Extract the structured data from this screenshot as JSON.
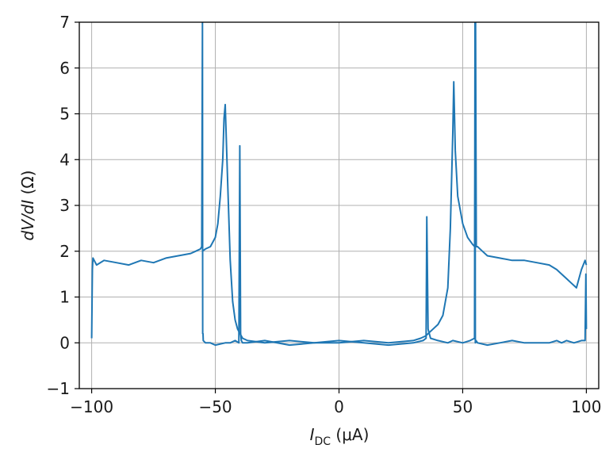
{
  "chart_data": {
    "type": "line",
    "title": "",
    "xlabel": {
      "main": "I",
      "sub": "DC",
      "unit": " (μA)"
    },
    "ylabel": {
      "main": "dV/dI",
      "unit": " (Ω)"
    },
    "xlim": [
      -105,
      105
    ],
    "ylim": [
      -1,
      7
    ],
    "xticks": [
      -100,
      -50,
      0,
      50,
      100
    ],
    "xtick_labels": [
      "−100",
      "−50",
      "0",
      "50",
      "100"
    ],
    "yticks": [
      -1,
      0,
      1,
      2,
      3,
      4,
      5,
      6,
      7
    ],
    "ytick_labels": [
      "−1",
      "0",
      "1",
      "2",
      "3",
      "4",
      "5",
      "6",
      "7"
    ],
    "grid": true,
    "color": "#1f77b4",
    "series": [
      {
        "x": [
          -100,
          -99.7,
          -99.5,
          -98,
          -95,
          -90,
          -85,
          -80,
          -75,
          -70,
          -65,
          -60,
          -58,
          -56,
          -55.5,
          -55.2,
          -55.1,
          -55,
          -54.9,
          -54,
          -52,
          -50,
          -46,
          -44,
          -42,
          -40.5,
          -40.1,
          -39.8,
          -39.5,
          -39,
          -37,
          -30,
          -20,
          -10,
          0,
          10,
          20,
          30,
          34,
          35.2,
          35.5,
          36,
          37,
          40,
          44,
          46,
          50,
          53,
          54.8,
          55,
          55.1,
          55.4,
          56,
          60,
          65,
          70,
          75,
          80,
          85,
          88,
          90,
          92,
          95,
          98,
          99.5,
          99.8,
          100
        ],
        "y": [
          0.1,
          1.6,
          1.85,
          1.7,
          1.8,
          1.75,
          1.7,
          1.8,
          1.75,
          1.85,
          1.9,
          1.95,
          2.0,
          2.05,
          2.1,
          7,
          0.2,
          0.2,
          0.05,
          0.0,
          0.0,
          -0.05,
          0.0,
          0.0,
          0.05,
          0.0,
          4.3,
          0.2,
          0.05,
          0.0,
          0.0,
          0.05,
          -0.05,
          0.0,
          0.05,
          0.0,
          -0.05,
          0.0,
          0.05,
          0.1,
          2.75,
          0.3,
          0.1,
          0.05,
          0.0,
          0.05,
          0.0,
          0.05,
          0.1,
          7,
          0.0,
          0.05,
          0.0,
          -0.05,
          0.0,
          0.05,
          0.0,
          0.0,
          0.0,
          0.05,
          0.0,
          0.05,
          0.0,
          0.05,
          0.05,
          1.5,
          0.3
        ]
      },
      {
        "x": [
          -55.3,
          -54,
          -52,
          -50,
          -49,
          -48,
          -47,
          -46.5,
          -46,
          -45,
          -44,
          -43,
          -42,
          -41,
          -40,
          -39,
          -37,
          -30,
          -20,
          -10,
          0,
          10,
          20,
          30,
          33,
          35,
          37,
          40,
          42,
          44,
          45,
          46,
          46.4,
          47,
          48,
          50,
          52,
          54,
          54.9,
          55.2,
          55.5,
          56,
          58,
          60,
          65,
          70,
          75,
          80,
          85,
          88,
          90,
          92,
          94,
          96,
          98,
          99.5,
          100
        ],
        "y": [
          2.0,
          2.05,
          2.1,
          2.3,
          2.6,
          3.2,
          4.0,
          4.9,
          5.2,
          3.5,
          1.8,
          0.9,
          0.5,
          0.3,
          0.2,
          0.1,
          0.05,
          0.0,
          0.05,
          0.0,
          0.0,
          0.05,
          0.0,
          0.05,
          0.1,
          0.15,
          0.25,
          0.4,
          0.6,
          1.2,
          2.5,
          4.6,
          5.7,
          4.2,
          3.2,
          2.6,
          2.3,
          2.15,
          2.1,
          7,
          2.1,
          2.1,
          2.0,
          1.9,
          1.85,
          1.8,
          1.8,
          1.75,
          1.7,
          1.6,
          1.5,
          1.4,
          1.3,
          1.2,
          1.6,
          1.8,
          1.7
        ]
      }
    ]
  }
}
